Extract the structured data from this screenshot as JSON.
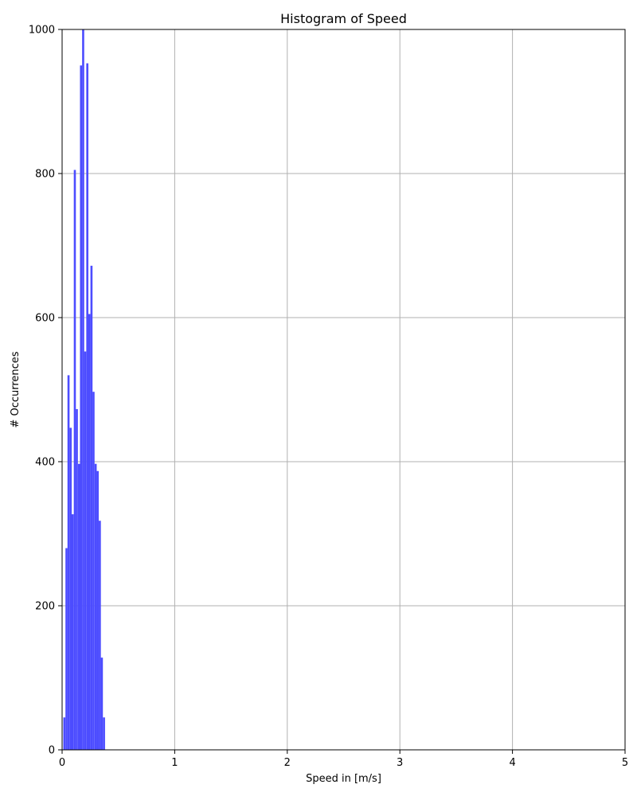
{
  "chart_data": {
    "type": "bar",
    "title": "Histogram of Speed",
    "xlabel": "Speed in [m/s]",
    "ylabel": "# Occurrences",
    "xlim": [
      0,
      5
    ],
    "ylim": [
      0,
      1000
    ],
    "xticks": [
      0,
      1,
      2,
      3,
      4,
      5
    ],
    "yticks": [
      0,
      200,
      400,
      600,
      800,
      1000
    ],
    "grid": true,
    "bar_color": "#4c4cff",
    "bin_width": 0.0185,
    "bins": [
      {
        "x": 0.02,
        "value": 45
      },
      {
        "x": 0.039,
        "value": 280
      },
      {
        "x": 0.057,
        "value": 520
      },
      {
        "x": 0.076,
        "value": 447
      },
      {
        "x": 0.094,
        "value": 327
      },
      {
        "x": 0.113,
        "value": 805
      },
      {
        "x": 0.131,
        "value": 473
      },
      {
        "x": 0.15,
        "value": 397
      },
      {
        "x": 0.168,
        "value": 950
      },
      {
        "x": 0.187,
        "value": 1000
      },
      {
        "x": 0.205,
        "value": 553
      },
      {
        "x": 0.224,
        "value": 953
      },
      {
        "x": 0.242,
        "value": 605
      },
      {
        "x": 0.261,
        "value": 672
      },
      {
        "x": 0.279,
        "value": 497
      },
      {
        "x": 0.298,
        "value": 397
      },
      {
        "x": 0.316,
        "value": 387
      },
      {
        "x": 0.335,
        "value": 318
      },
      {
        "x": 0.353,
        "value": 128
      },
      {
        "x": 0.372,
        "value": 45
      }
    ]
  }
}
